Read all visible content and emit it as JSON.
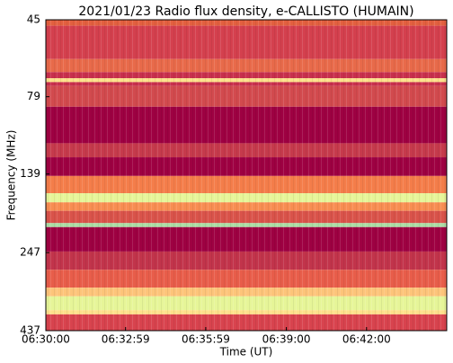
{
  "chart_data": {
    "type": "spectrogram",
    "title": "2021/01/23  Radio flux density, e-CALLISTO (HUMAIN)",
    "xlabel": "Time (UT)",
    "ylabel": "Frequency (MHz)",
    "xlim": [
      23400,
      24300
    ],
    "xticks": [
      {
        "value": 23400,
        "label": "06:30:00"
      },
      {
        "value": 23579,
        "label": "06:32:59"
      },
      {
        "value": 23759,
        "label": "06:35:59"
      },
      {
        "value": 23940,
        "label": "06:39:00"
      },
      {
        "value": 24120,
        "label": "06:42:00"
      }
    ],
    "ylim": [
      45,
      437
    ],
    "yscale": "log",
    "yinverted": true,
    "yticks": [
      45,
      79,
      139,
      247,
      437
    ],
    "bands": [
      {
        "from": 45,
        "to": 47,
        "color": "#e3603f"
      },
      {
        "from": 47,
        "to": 60,
        "color": "#d4404e"
      },
      {
        "from": 60,
        "to": 66,
        "color": "#e86a4a"
      },
      {
        "from": 66,
        "to": 69,
        "color": "#c8304d"
      },
      {
        "from": 69,
        "to": 71,
        "color": "#fce08a"
      },
      {
        "from": 71,
        "to": 73,
        "color": "#c8304d"
      },
      {
        "from": 73,
        "to": 85,
        "color": "#d24a4e"
      },
      {
        "from": 85,
        "to": 111,
        "color": "#9e0142"
      },
      {
        "from": 111,
        "to": 123,
        "color": "#c63a4c"
      },
      {
        "from": 123,
        "to": 141,
        "color": "#9e0142"
      },
      {
        "from": 141,
        "to": 160,
        "color": "#f47d4a"
      },
      {
        "from": 160,
        "to": 171,
        "color": "#e6f598"
      },
      {
        "from": 171,
        "to": 182,
        "color": "#f88d52"
      },
      {
        "from": 182,
        "to": 199,
        "color": "#d9534a"
      },
      {
        "from": 199,
        "to": 205,
        "color": "#abdda4"
      },
      {
        "from": 205,
        "to": 245,
        "color": "#9e0142"
      },
      {
        "from": 245,
        "to": 280,
        "color": "#c2344b"
      },
      {
        "from": 280,
        "to": 319,
        "color": "#e85d4a"
      },
      {
        "from": 319,
        "to": 340,
        "color": "#fdc47a"
      },
      {
        "from": 340,
        "to": 376,
        "color": "#e6f598"
      },
      {
        "from": 376,
        "to": 388,
        "color": "#fee08b"
      },
      {
        "from": 388,
        "to": 437,
        "color": "#d8434e"
      }
    ]
  }
}
